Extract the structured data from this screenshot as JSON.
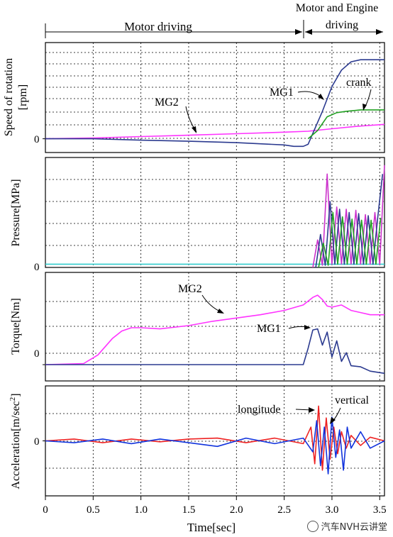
{
  "phases": {
    "motor_driving": "Motor driving",
    "motor_engine_line1": "Motor and Engine",
    "motor_engine_line2": "driving"
  },
  "watermark": "汽车NVH云讲堂",
  "chart_data": [
    {
      "type": "line",
      "ylabel_line1": "Speed of rotation",
      "ylabel_line2": "[rpm]",
      "zero_label": "0",
      "ylim": [
        -1,
        7
      ],
      "grid": true,
      "annotations": [
        "MG2",
        "MG1",
        "crank"
      ],
      "series": [
        {
          "name": "MG2",
          "color": "#ff33ff",
          "x": [
            0,
            0.5,
            1.0,
            1.5,
            2.0,
            2.5,
            2.75,
            3.0,
            3.25,
            3.55
          ],
          "y": [
            0,
            0.06,
            0.16,
            0.26,
            0.37,
            0.48,
            0.55,
            0.73,
            0.9,
            1.05
          ]
        },
        {
          "name": "MG1",
          "color": "#2b3a8f",
          "x": [
            0,
            0.5,
            1.0,
            1.5,
            2.0,
            2.5,
            2.6,
            2.7,
            2.75,
            2.8,
            2.9,
            3.0,
            3.1,
            3.2,
            3.3,
            3.55
          ],
          "y": [
            0,
            0,
            -0.1,
            -0.18,
            -0.28,
            -0.45,
            -0.55,
            -0.55,
            -0.4,
            0.4,
            2.0,
            3.8,
            5.0,
            5.6,
            5.75,
            5.75
          ]
        },
        {
          "name": "crank",
          "color": "#22a022",
          "x": [
            2.75,
            2.85,
            2.95,
            3.05,
            3.15,
            3.3,
            3.55
          ],
          "y": [
            0,
            0.6,
            1.6,
            1.9,
            2.0,
            2.1,
            2.1
          ]
        }
      ]
    },
    {
      "type": "line",
      "ylabel": "Pressure[MPa]",
      "zero_label": "0",
      "ylim": [
        0,
        10
      ],
      "grid": true,
      "series": [
        {
          "name": "",
          "color": "#33cccc",
          "x": [
            0,
            2.8,
            3.55
          ],
          "y": [
            0.3,
            0.3,
            0.3
          ]
        },
        {
          "name": "",
          "color": "#cc33cc",
          "x": [
            2.8,
            2.85,
            2.9,
            2.95,
            3.0,
            3.05,
            3.1,
            3.15,
            3.2,
            3.25,
            3.3,
            3.35,
            3.4,
            3.45,
            3.5,
            3.55
          ],
          "y": [
            0,
            2.5,
            0.2,
            8.5,
            0.3,
            5.5,
            0.3,
            5.3,
            0.3,
            5.2,
            0.3,
            4.8,
            0.3,
            5.0,
            0.3,
            9.3
          ]
        },
        {
          "name": "",
          "color": "#2b3a8f",
          "x": [
            2.83,
            2.88,
            2.93,
            2.98,
            3.03,
            3.08,
            3.13,
            3.18,
            3.23,
            3.28,
            3.33,
            3.38,
            3.43,
            3.48,
            3.53
          ],
          "y": [
            0,
            3.0,
            0.2,
            6.0,
            0.3,
            5.3,
            0.3,
            5.0,
            0.3,
            4.9,
            0.3,
            4.7,
            0.3,
            4.6,
            8.5
          ]
        },
        {
          "name": "",
          "color": "#22a022",
          "x": [
            2.86,
            2.91,
            2.96,
            3.01,
            3.06,
            3.11,
            3.16,
            3.21,
            3.26,
            3.31,
            3.36,
            3.41,
            3.46,
            3.51
          ],
          "y": [
            0,
            2.2,
            0.2,
            5.0,
            0.3,
            4.6,
            0.3,
            4.4,
            0.3,
            4.3,
            0.3,
            4.3,
            0.3,
            4.5
          ]
        }
      ]
    },
    {
      "type": "line",
      "ylabel": "Torque[Nm]",
      "zero_label": "0",
      "ylim": [
        -1.5,
        8.5
      ],
      "grid": true,
      "annotations": [
        "MG2",
        "MG1"
      ],
      "series": [
        {
          "name": "MG2",
          "color": "#ff33ff",
          "x": [
            0,
            0.4,
            0.55,
            0.7,
            0.8,
            0.9,
            1.0,
            1.2,
            1.5,
            1.75,
            2.0,
            2.25,
            2.5,
            2.7,
            2.8,
            2.85,
            2.9,
            2.95,
            3.0,
            3.1,
            3.2,
            3.3,
            3.4,
            3.55
          ],
          "y": [
            0,
            0.1,
            0.9,
            2.4,
            3.1,
            3.4,
            3.4,
            3.3,
            3.6,
            4.0,
            4.3,
            4.6,
            5.0,
            5.5,
            6.2,
            6.4,
            6.0,
            5.4,
            5.3,
            5.5,
            5.0,
            4.8,
            4.6,
            4.6
          ]
        },
        {
          "name": "MG1",
          "color": "#2b3a8f",
          "x": [
            0,
            2.7,
            2.75,
            2.8,
            2.85,
            2.9,
            2.95,
            3.0,
            3.05,
            3.1,
            3.15,
            3.2,
            3.3,
            3.4,
            3.55
          ],
          "y": [
            0,
            0,
            1.5,
            3.2,
            3.3,
            1.8,
            3.0,
            0.7,
            2.2,
            0.3,
            1.1,
            -0.1,
            -0.2,
            -0.6,
            -0.8
          ]
        }
      ]
    },
    {
      "type": "line",
      "ylabel": "Acceleration[m/sec",
      "ylabel_sup": "2",
      "ylabel_end": "]",
      "zero_label": "0",
      "ylim": [
        -6,
        6
      ],
      "grid": true,
      "annotations": [
        "longitude",
        "vertical"
      ],
      "series": [
        {
          "name": "longitude",
          "color": "#ee2222",
          "x": [
            0,
            0.3,
            0.6,
            0.9,
            1.2,
            1.5,
            1.8,
            2.1,
            2.4,
            2.7,
            2.78,
            2.82,
            2.86,
            2.9,
            2.94,
            2.98,
            3.02,
            3.06,
            3.1,
            3.15,
            3.2,
            3.3,
            3.4,
            3.55
          ],
          "y": [
            0,
            0.2,
            -0.2,
            0.2,
            -0.1,
            0.2,
            0.3,
            -0.2,
            0.3,
            -0.3,
            1.5,
            -2.5,
            3.8,
            -3.2,
            2.5,
            -2.0,
            1.5,
            -1.4,
            1.0,
            -0.8,
            0.6,
            -0.5,
            0.4,
            0
          ]
        },
        {
          "name": "vertical",
          "color": "#1133dd",
          "x": [
            0,
            0.3,
            0.6,
            0.9,
            1.2,
            1.5,
            1.8,
            2.1,
            2.4,
            2.7,
            2.8,
            2.84,
            2.88,
            2.92,
            2.96,
            3.0,
            3.04,
            3.08,
            3.12,
            3.16,
            3.2,
            3.3,
            3.4,
            3.55
          ],
          "y": [
            0,
            -0.2,
            0.2,
            -0.3,
            0.2,
            -0.2,
            -0.6,
            0.3,
            -0.3,
            0.3,
            -1.2,
            2.2,
            -2.7,
            1.5,
            -3.6,
            2.6,
            -1.8,
            1.2,
            -3.2,
            1.5,
            -0.8,
            1.0,
            -0.8,
            0
          ]
        }
      ]
    }
  ],
  "x_axis": {
    "xlabel": "Time[sec]",
    "xlim": [
      0,
      3.55
    ],
    "ticks": [
      {
        "value": 0,
        "label": "0"
      },
      {
        "value": 0.5,
        "label": "0.5"
      },
      {
        "value": 1.0,
        "label": "1.0"
      },
      {
        "value": 1.5,
        "label": "1.5"
      },
      {
        "value": 2.0,
        "label": "2.0"
      },
      {
        "value": 2.5,
        "label": "2.5"
      },
      {
        "value": 3.0,
        "label": "3.0"
      },
      {
        "value": 3.5,
        "label": "3.5"
      }
    ]
  }
}
